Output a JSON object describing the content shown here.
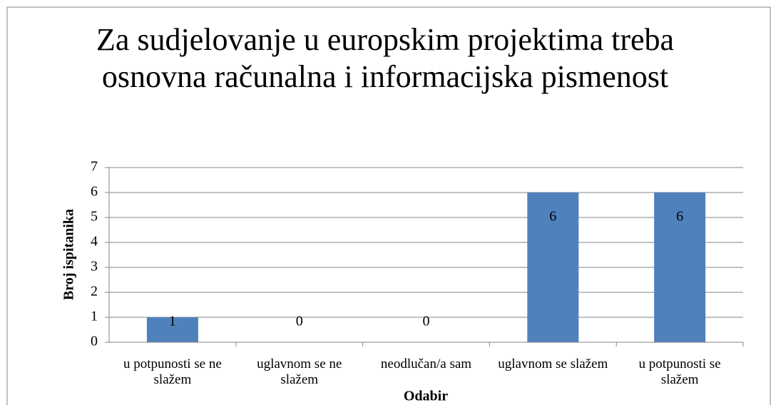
{
  "chart_data": {
    "type": "bar",
    "title": "Za sudjelovanje u europskim projektima treba osnovna računalna i informacijska pismenost",
    "x_label": "Odabir",
    "y_label": "Broj ispitanika",
    "categories": [
      "u potpunosti se ne slažem",
      "uglavnom se ne slažem",
      "neodlučan/a sam",
      "uglavnom se slažem",
      "u potpunosti se slažem"
    ],
    "values": [
      1,
      0,
      0,
      6,
      6
    ],
    "color": "#4f81bd",
    "ylim": [
      0,
      7
    ],
    "yticks": [
      0,
      1,
      2,
      3,
      4,
      5,
      6,
      7
    ],
    "grid": true
  }
}
